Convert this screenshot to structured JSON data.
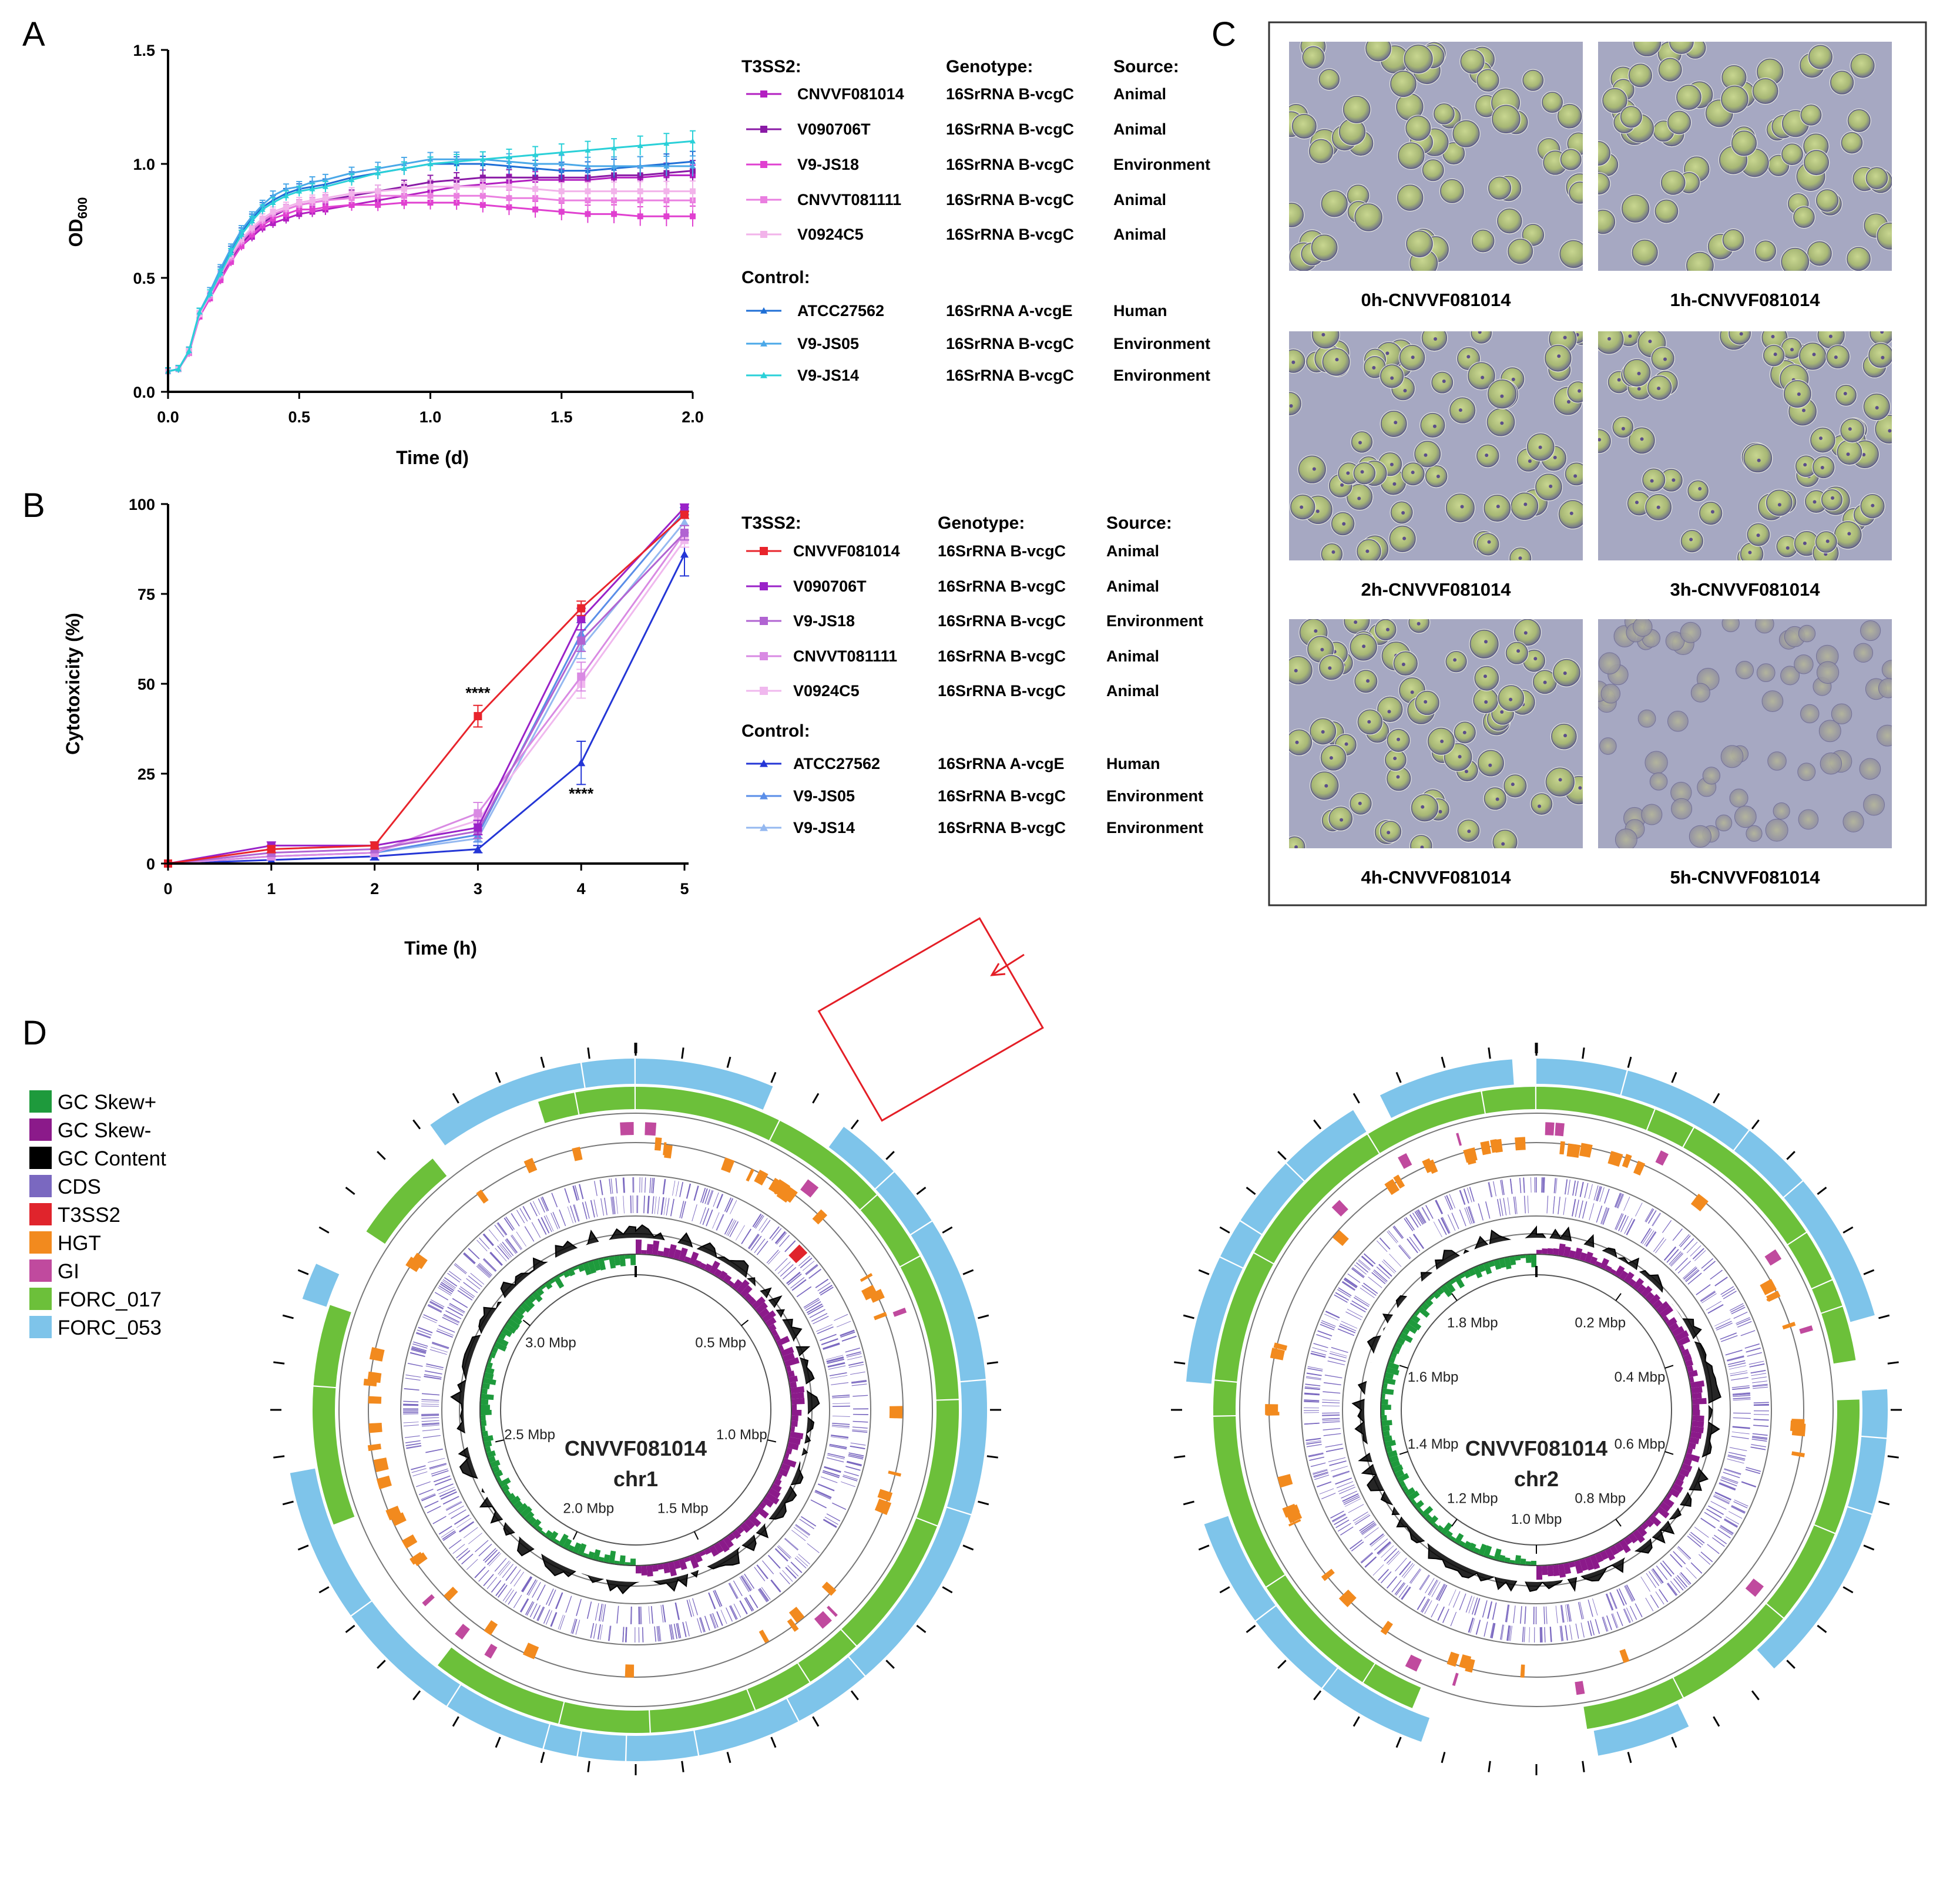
{
  "panels": {
    "a": "A",
    "b": "B",
    "c": "C",
    "d": "D"
  },
  "chart_data": [
    {
      "type": "line",
      "panel": "A",
      "xlabel": "Time (d)",
      "ylabel_main": "OD",
      "ylabel_sub": "600",
      "xlim": [
        0,
        2
      ],
      "ylim": [
        0,
        1.5
      ],
      "xticks": [
        "0.0",
        "0.5",
        "1.0",
        "1.5",
        "2.0"
      ],
      "yticks": [
        "0.0",
        "0.5",
        "1.0",
        "1.5"
      ],
      "x": [
        0,
        0.04,
        0.08,
        0.12,
        0.16,
        0.2,
        0.24,
        0.28,
        0.32,
        0.36,
        0.4,
        0.45,
        0.5,
        0.55,
        0.6,
        0.7,
        0.8,
        0.9,
        1.0,
        1.1,
        1.2,
        1.3,
        1.4,
        1.5,
        1.6,
        1.7,
        1.8,
        1.9,
        2.0
      ],
      "legend": {
        "group1": "T3SS2:",
        "group2": "Control:",
        "col_genotype": "Genotype:",
        "col_source": "Source:"
      },
      "series": [
        {
          "name": "CNVVF081014",
          "genotype": "16SrRNA B-vcgC",
          "source": "Animal",
          "color": "#b31fc1",
          "marker": "square",
          "values": [
            0.09,
            0.1,
            0.18,
            0.34,
            0.42,
            0.5,
            0.58,
            0.64,
            0.68,
            0.72,
            0.74,
            0.76,
            0.78,
            0.79,
            0.8,
            0.82,
            0.84,
            0.86,
            0.88,
            0.9,
            0.91,
            0.92,
            0.93,
            0.93,
            0.93,
            0.94,
            0.94,
            0.95,
            0.95
          ]
        },
        {
          "name": "V090706T",
          "genotype": "16SrRNA B-vcgC",
          "source": "Animal",
          "color": "#8a1aa6",
          "marker": "square",
          "values": [
            0.09,
            0.1,
            0.17,
            0.34,
            0.42,
            0.5,
            0.58,
            0.65,
            0.7,
            0.74,
            0.77,
            0.8,
            0.82,
            0.83,
            0.84,
            0.86,
            0.88,
            0.9,
            0.92,
            0.93,
            0.94,
            0.94,
            0.94,
            0.94,
            0.94,
            0.95,
            0.95,
            0.96,
            0.97
          ]
        },
        {
          "name": "V9-JS18",
          "genotype": "16SrRNA B-vcgC",
          "source": "Environment",
          "color": "#e040d0",
          "marker": "square",
          "values": [
            0.09,
            0.1,
            0.17,
            0.33,
            0.41,
            0.49,
            0.57,
            0.64,
            0.69,
            0.73,
            0.76,
            0.78,
            0.8,
            0.8,
            0.81,
            0.82,
            0.82,
            0.83,
            0.83,
            0.83,
            0.82,
            0.81,
            0.8,
            0.79,
            0.78,
            0.78,
            0.77,
            0.77,
            0.77
          ]
        },
        {
          "name": "CNVVT081111",
          "genotype": "16SrRNA B-vcgC",
          "source": "Animal",
          "color": "#ea7fe0",
          "marker": "square",
          "values": [
            0.09,
            0.1,
            0.17,
            0.34,
            0.42,
            0.51,
            0.59,
            0.66,
            0.71,
            0.75,
            0.78,
            0.8,
            0.82,
            0.83,
            0.84,
            0.85,
            0.86,
            0.86,
            0.86,
            0.86,
            0.86,
            0.85,
            0.85,
            0.84,
            0.84,
            0.84,
            0.84,
            0.84,
            0.84
          ]
        },
        {
          "name": "V0924C5",
          "genotype": "16SrRNA B-vcgC",
          "source": "Animal",
          "color": "#f2b3ea",
          "marker": "square",
          "values": [
            0.09,
            0.1,
            0.18,
            0.34,
            0.43,
            0.52,
            0.6,
            0.67,
            0.72,
            0.76,
            0.79,
            0.81,
            0.83,
            0.84,
            0.85,
            0.87,
            0.88,
            0.89,
            0.9,
            0.9,
            0.9,
            0.9,
            0.89,
            0.88,
            0.88,
            0.88,
            0.88,
            0.88,
            0.88
          ]
        },
        {
          "name": "ATCC27562",
          "genotype": "16SrRNA A-vcgE",
          "source": "Human",
          "color": "#1f6fd6",
          "marker": "triangle",
          "values": [
            0.09,
            0.1,
            0.18,
            0.35,
            0.44,
            0.53,
            0.62,
            0.7,
            0.76,
            0.81,
            0.84,
            0.87,
            0.89,
            0.9,
            0.91,
            0.94,
            0.96,
            0.98,
            1.0,
            1.0,
            1.0,
            0.99,
            0.98,
            0.97,
            0.97,
            0.98,
            0.99,
            1.0,
            1.01
          ]
        },
        {
          "name": "V9-JS05",
          "genotype": "16SrRNA B-vcgC",
          "source": "Environment",
          "color": "#4aa8e8",
          "marker": "triangle",
          "values": [
            0.09,
            0.1,
            0.18,
            0.35,
            0.44,
            0.54,
            0.63,
            0.71,
            0.77,
            0.82,
            0.86,
            0.89,
            0.9,
            0.92,
            0.93,
            0.96,
            0.98,
            1.0,
            1.02,
            1.02,
            1.02,
            1.01,
            1.0,
            1.0,
            0.99,
            0.99,
            0.99,
            0.99,
            0.99
          ]
        },
        {
          "name": "V9-JS14",
          "genotype": "16SrRNA B-vcgC",
          "source": "Environment",
          "color": "#2ad0d8",
          "marker": "triangle",
          "values": [
            0.09,
            0.1,
            0.18,
            0.35,
            0.43,
            0.52,
            0.61,
            0.69,
            0.75,
            0.8,
            0.83,
            0.86,
            0.88,
            0.89,
            0.9,
            0.93,
            0.96,
            0.98,
            1.0,
            1.01,
            1.02,
            1.03,
            1.04,
            1.05,
            1.06,
            1.07,
            1.08,
            1.09,
            1.1
          ]
        }
      ]
    },
    {
      "type": "line",
      "panel": "B",
      "xlabel": "Time (h)",
      "ylabel": "Cytotoxicity (%)",
      "xlim": [
        0,
        5
      ],
      "ylim": [
        0,
        100
      ],
      "xticks": [
        "0",
        "1",
        "2",
        "3",
        "4",
        "5"
      ],
      "yticks": [
        "0",
        "25",
        "50",
        "75",
        "100"
      ],
      "x": [
        0,
        1,
        2,
        3,
        4,
        5
      ],
      "annotations": [
        {
          "text": "****",
          "x": 3,
          "y": 46
        },
        {
          "text": "****",
          "x": 4,
          "y": 18
        }
      ],
      "legend": {
        "group1": "T3SS2:",
        "group2": "Control:",
        "col_genotype": "Genotype:",
        "col_source": "Source:"
      },
      "series": [
        {
          "name": "CNVVF081014",
          "genotype": "16SrRNA B-vcgC",
          "source": "Animal",
          "color": "#e8242c",
          "marker": "square",
          "values": [
            0,
            4,
            5,
            41,
            71,
            97
          ],
          "errors": [
            0,
            1,
            1,
            3,
            2,
            1
          ]
        },
        {
          "name": "V090706T",
          "genotype": "16SrRNA B-vcgC",
          "source": "Animal",
          "color": "#9a22c8",
          "marker": "square",
          "values": [
            0,
            5,
            5,
            10,
            68,
            99
          ],
          "errors": [
            0,
            1,
            1,
            2,
            3,
            1
          ]
        },
        {
          "name": "V9-JS18",
          "genotype": "16SrRNA B-vcgC",
          "source": "Environment",
          "color": "#b164d2",
          "marker": "square",
          "values": [
            0,
            3,
            4,
            9,
            62,
            92
          ],
          "errors": [
            0,
            1,
            1,
            2,
            3,
            2
          ]
        },
        {
          "name": "CNVVT081111",
          "genotype": "16SrRNA B-vcgC",
          "source": "Animal",
          "color": "#d98ae3",
          "marker": "square",
          "values": [
            0,
            2,
            3,
            14,
            52,
            92
          ],
          "errors": [
            0,
            1,
            1,
            3,
            4,
            2
          ]
        },
        {
          "name": "V0924C5",
          "genotype": "16SrRNA B-vcgC",
          "source": "Animal",
          "color": "#f0b8ee",
          "marker": "square",
          "values": [
            0,
            2,
            3,
            12,
            50,
            90
          ],
          "errors": [
            0,
            1,
            1,
            2,
            4,
            2
          ]
        },
        {
          "name": "ATCC27562",
          "genotype": "16SrRNA A-vcgE",
          "source": "Human",
          "color": "#2436d6",
          "marker": "triangle",
          "values": [
            0,
            1,
            2,
            4,
            28,
            86
          ],
          "errors": [
            0,
            1,
            1,
            1,
            6,
            6
          ]
        },
        {
          "name": "V9-JS05",
          "genotype": "16SrRNA B-vcgC",
          "source": "Environment",
          "color": "#5a8ee8",
          "marker": "triangle",
          "values": [
            0,
            2,
            3,
            8,
            64,
            98
          ],
          "errors": [
            0,
            1,
            1,
            2,
            3,
            1
          ]
        },
        {
          "name": "V9-JS14",
          "genotype": "16SrRNA B-vcgC",
          "source": "Environment",
          "color": "#94b8f0",
          "marker": "triangle",
          "values": [
            0,
            2,
            3,
            7,
            60,
            95
          ],
          "errors": [
            0,
            1,
            1,
            2,
            3,
            1
          ]
        }
      ]
    }
  ],
  "micrographs": {
    "captions": [
      "0h-CNVVF081014",
      "1h-CNVVF081014",
      "2h-CNVVF081014",
      "3h-CNVVF081014",
      "4h-CNVVF081014",
      "5h-CNVVF081014"
    ]
  },
  "genome": {
    "legend": [
      {
        "label": "GC Skew+",
        "color": "#1e9a3c"
      },
      {
        "label": "GC Skew-",
        "color": "#8b1a8a"
      },
      {
        "label": "GC Content",
        "color": "#000000"
      },
      {
        "label": "CDS",
        "color": "#7a68c0"
      },
      {
        "label": "T3SS2",
        "color": "#e0242c"
      },
      {
        "label": "HGT",
        "color": "#f28a1e"
      },
      {
        "label": "GI",
        "color": "#c04a9e"
      },
      {
        "label": "FORC_017",
        "color": "#6cc03a"
      },
      {
        "label": "FORC_053",
        "color": "#7ec4ea"
      }
    ],
    "chr1": {
      "name1": "CNVVF081014",
      "name2": "chr1",
      "size_mbp": 3.3,
      "ticks": [
        "0.5 Mbp",
        "1.0 Mbp",
        "1.5 Mbp",
        "2.0 Mbp",
        "2.5 Mbp",
        "3.0 Mbp"
      ]
    },
    "chr2": {
      "name1": "CNVVF081014",
      "name2": "chr2",
      "size_mbp": 1.9,
      "ticks": [
        "0.2 Mbp",
        "0.4 Mbp",
        "0.6 Mbp",
        "0.8 Mbp",
        "1.0 Mbp",
        "1.2 Mbp",
        "1.4 Mbp",
        "1.6 Mbp",
        "1.8 Mbp"
      ]
    }
  }
}
